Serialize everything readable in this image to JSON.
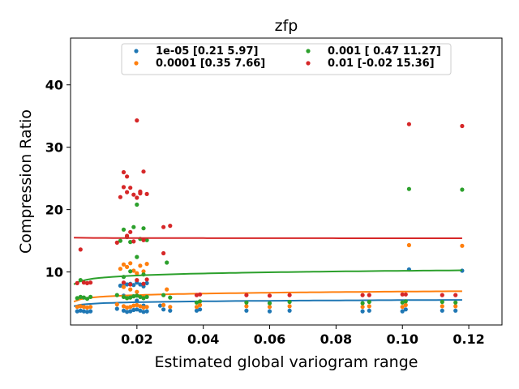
{
  "chart_data": {
    "type": "scatter",
    "title": "zfp",
    "xlabel": "Estimated global variogram range",
    "ylabel": "Compression Ratio",
    "xlim": [
      0.0,
      0.13
    ],
    "ylim": [
      1.5,
      47.5
    ],
    "xticks": [
      0.02,
      0.04,
      0.06,
      0.08,
      0.1,
      0.12
    ],
    "xtick_labels": [
      "0.02",
      "0.04",
      "0.06",
      "0.08",
      "0.10",
      "0.12"
    ],
    "yticks": [
      10,
      20,
      30,
      40
    ],
    "ytick_labels": [
      "10",
      "20",
      "30",
      "40"
    ],
    "grid": false,
    "legend_position": "top-center",
    "series": [
      {
        "name": "1e-05 [0.21 5.97]",
        "color": "#1f77b4",
        "fit": {
          "a": 0.21,
          "b": 5.97
        },
        "x": [
          0.002,
          0.003,
          0.004,
          0.005,
          0.006,
          0.014,
          0.016,
          0.017,
          0.018,
          0.019,
          0.02,
          0.021,
          0.022,
          0.023,
          0.028,
          0.03,
          0.038,
          0.039,
          0.053,
          0.06,
          0.066,
          0.088,
          0.09,
          0.1,
          0.101,
          0.102,
          0.112,
          0.116,
          0.118
        ],
        "y": [
          3.7,
          3.8,
          3.7,
          3.6,
          3.7,
          4.1,
          3.8,
          3.6,
          3.7,
          3.9,
          4.0,
          3.8,
          3.6,
          3.7,
          4.0,
          3.8,
          3.8,
          4.0,
          3.8,
          3.7,
          3.8,
          3.7,
          3.8,
          3.7,
          4.0,
          10.4,
          3.8,
          3.8,
          10.2
        ],
        "extra_x": [
          0.015,
          0.016,
          0.017,
          0.018,
          0.019,
          0.02,
          0.021,
          0.022,
          0.023,
          0.016,
          0.018,
          0.02,
          0.022,
          0.027
        ],
        "extra_y": [
          7.8,
          8.2,
          8.0,
          8.1,
          7.9,
          8.3,
          8.0,
          7.7,
          8.2,
          6.2,
          6.0,
          5.4,
          4.6,
          4.6
        ]
      },
      {
        "name": "0.0001 [0.35 7.66]",
        "color": "#ff7f0e",
        "fit": {
          "a": 0.35,
          "b": 7.66
        },
        "x": [
          0.002,
          0.003,
          0.004,
          0.005,
          0.006,
          0.014,
          0.016,
          0.017,
          0.018,
          0.019,
          0.02,
          0.021,
          0.022,
          0.023,
          0.028,
          0.03,
          0.038,
          0.039,
          0.053,
          0.06,
          0.066,
          0.088,
          0.09,
          0.1,
          0.101,
          0.102,
          0.112,
          0.116,
          0.118
        ],
        "y": [
          4.4,
          4.5,
          4.4,
          4.3,
          4.4,
          4.8,
          4.5,
          4.3,
          4.4,
          4.6,
          4.7,
          4.5,
          4.3,
          4.4,
          4.7,
          4.4,
          4.4,
          4.7,
          4.5,
          4.4,
          4.5,
          4.4,
          4.5,
          4.4,
          4.7,
          14.3,
          4.5,
          4.5,
          14.2
        ],
        "extra_x": [
          0.015,
          0.016,
          0.017,
          0.018,
          0.019,
          0.02,
          0.021,
          0.022,
          0.023,
          0.016,
          0.018,
          0.02,
          0.022,
          0.029
        ],
        "extra_y": [
          10.5,
          11.2,
          10.8,
          11.4,
          10.2,
          9.8,
          11.0,
          10.1,
          11.3,
          7.6,
          7.2,
          6.8,
          6.1,
          7.2
        ]
      },
      {
        "name": "0.001 [ 0.47 11.27]",
        "color": "#2ca02c",
        "fit": {
          "a": 0.47,
          "b": 11.27
        },
        "x": [
          0.002,
          0.003,
          0.004,
          0.005,
          0.006,
          0.014,
          0.016,
          0.017,
          0.018,
          0.019,
          0.02,
          0.021,
          0.022,
          0.023,
          0.028,
          0.03,
          0.038,
          0.039,
          0.053,
          0.06,
          0.066,
          0.088,
          0.09,
          0.1,
          0.101,
          0.102,
          0.112,
          0.116,
          0.118
        ],
        "y": [
          5.8,
          6.0,
          5.9,
          5.7,
          6.0,
          6.3,
          6.0,
          5.8,
          5.9,
          6.1,
          6.2,
          6.0,
          5.8,
          6.0,
          6.3,
          5.9,
          5.1,
          5.3,
          5.1,
          5.0,
          5.2,
          5.0,
          5.2,
          5.1,
          5.3,
          23.3,
          5.2,
          5.1,
          23.2
        ],
        "extra_x": [
          0.015,
          0.016,
          0.017,
          0.018,
          0.019,
          0.02,
          0.021,
          0.022,
          0.023,
          0.016,
          0.018,
          0.02,
          0.022,
          0.029,
          0.003
        ],
        "extra_y": [
          15.0,
          16.8,
          15.6,
          14.8,
          17.2,
          20.8,
          15.3,
          17.0,
          15.1,
          9.2,
          10.1,
          12.4,
          9.6,
          11.5,
          8.7
        ]
      },
      {
        "name": "0.01 [-0.02 15.36]",
        "color": "#d62728",
        "fit": {
          "a": -0.02,
          "b": 15.36
        },
        "x": [
          0.002,
          0.003,
          0.004,
          0.005,
          0.006,
          0.014,
          0.016,
          0.017,
          0.018,
          0.019,
          0.02,
          0.021,
          0.022,
          0.023,
          0.028,
          0.03,
          0.038,
          0.039,
          0.053,
          0.06,
          0.066,
          0.088,
          0.09,
          0.1,
          0.101,
          0.102,
          0.112,
          0.116,
          0.118
        ],
        "y": [
          8.2,
          13.6,
          8.3,
          8.2,
          8.3,
          14.7,
          26.0,
          25.3,
          23.5,
          22.4,
          34.3,
          22.8,
          26.1,
          22.5,
          17.2,
          17.4,
          6.3,
          6.4,
          6.3,
          6.2,
          6.3,
          6.3,
          6.3,
          6.4,
          6.4,
          33.7,
          6.3,
          6.3,
          33.4
        ],
        "extra_x": [
          0.015,
          0.016,
          0.017,
          0.018,
          0.019,
          0.02,
          0.021,
          0.022,
          0.023,
          0.016,
          0.018,
          0.02,
          0.022,
          0.028,
          0.021,
          0.017
        ],
        "extra_y": [
          22.0,
          23.6,
          22.8,
          16.4,
          14.9,
          21.9,
          22.6,
          15.1,
          8.8,
          8.3,
          8.0,
          8.7,
          8.1,
          13.0,
          22.9,
          15.8
        ]
      }
    ]
  }
}
